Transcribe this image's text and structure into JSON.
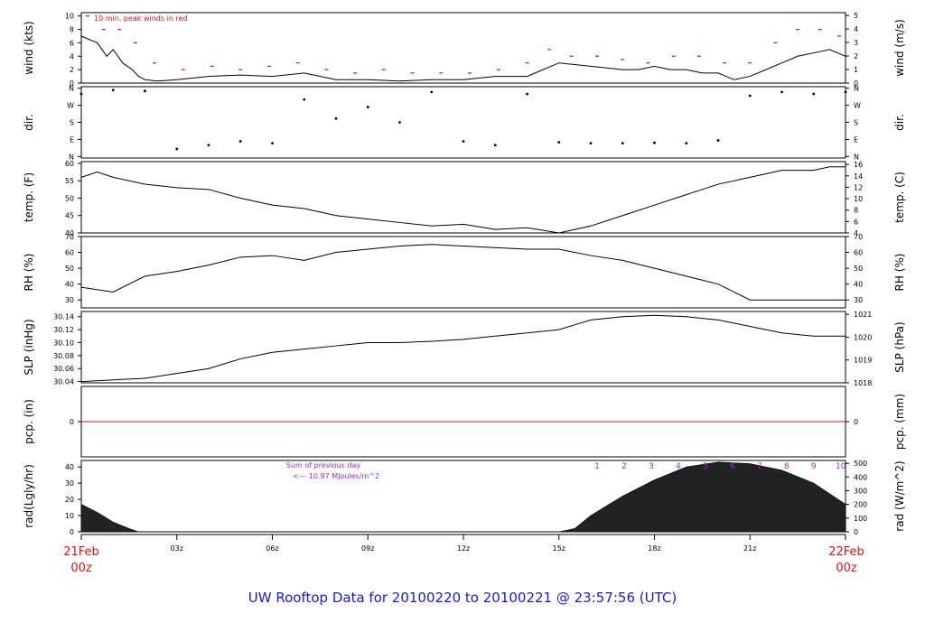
{
  "title": "UW Rooftop Data for 20100220  to  20100221 @ 23:57:56  (UTC)",
  "colors": {
    "title": "#1a1acc",
    "red": "#e01010",
    "purple": "#9a2ad8",
    "ink": "#000000"
  },
  "time_axis": {
    "ticks": [
      0,
      3,
      6,
      9,
      12,
      15,
      18,
      21,
      24
    ],
    "tick_labels": [
      "",
      "03z",
      "06z",
      "09z",
      "12z",
      "15z",
      "18z",
      "21z",
      ""
    ],
    "start_label_top": "21Feb",
    "start_label_bottom": "00z",
    "end_label_top": "22Feb",
    "end_label_bottom": "00z"
  },
  "annotations": {
    "wind_note": "10 min. peak winds in red",
    "rad_sum_line1": "Sum of previous day",
    "rad_sum_line2": "<--- 10.97 MJoules/m^2",
    "rad_hours": [
      "1",
      "2",
      "3",
      "4",
      "5",
      "6",
      "7",
      "8",
      "9",
      "10"
    ]
  },
  "chart_data": [
    {
      "type": "line",
      "panel": "wind",
      "ylabel_left": "wind (kts)",
      "ylabel_right": "wind (m/s)",
      "ylim": [
        0,
        10.5
      ],
      "left_ticks": [
        0,
        2,
        4,
        6,
        8,
        10
      ],
      "right_ticks": [
        0,
        1,
        2,
        3,
        4,
        5
      ],
      "series": [
        {
          "name": "wind",
          "x": [
            0,
            0.5,
            0.8,
            1.0,
            1.3,
            1.6,
            1.8,
            2.0,
            2.4,
            3.0,
            4.0,
            5.0,
            6.0,
            7.0,
            8.0,
            9.0,
            10.0,
            11.0,
            12.0,
            13.0,
            14.0,
            14.5,
            15.0,
            16.0,
            17.0,
            17.5,
            18.0,
            18.5,
            19.0,
            19.5,
            20.0,
            20.5,
            21.0,
            21.5,
            22.0,
            22.5,
            23.0,
            23.5,
            24.0
          ],
          "y": [
            7,
            6,
            4,
            5,
            3,
            2,
            1,
            0.5,
            0.3,
            0.5,
            1,
            1.2,
            1,
            1.5,
            0.5,
            0.5,
            0.3,
            0.5,
            0.5,
            1,
            1,
            2,
            3,
            2.5,
            2,
            2,
            2.5,
            2,
            2,
            1.5,
            1.5,
            0.5,
            1,
            2,
            3,
            4,
            4.5,
            5,
            4
          ]
        },
        {
          "name": "10 min. peak winds",
          "x": [
            0.2,
            0.7,
            1.2,
            1.7,
            2.3,
            3.2,
            4.1,
            5.0,
            5.9,
            6.8,
            7.7,
            8.6,
            9.5,
            10.4,
            11.3,
            12.2,
            13.1,
            14.0,
            14.7,
            15.4,
            16.2,
            17.0,
            17.8,
            18.6,
            19.4,
            20.2,
            21.0,
            21.8,
            22.5,
            23.2,
            23.8
          ],
          "y": [
            10,
            8,
            8,
            6,
            3,
            2,
            2.5,
            2,
            2.5,
            3,
            2,
            1.5,
            2,
            1.5,
            1.5,
            1.5,
            2,
            3,
            5,
            4,
            4,
            3.5,
            3,
            4,
            4,
            3,
            3,
            6,
            8,
            8,
            7
          ]
        }
      ]
    },
    {
      "type": "scatter",
      "panel": "dir",
      "ylabel_left": "dir.",
      "ylabel_right": "dir.",
      "y_ticks": [
        "N",
        "E",
        "S",
        "W",
        "N"
      ],
      "y_values": [
        0,
        90,
        180,
        270,
        360
      ],
      "series": [
        {
          "name": "direction",
          "x": [
            0,
            1,
            2,
            3,
            4,
            5,
            6,
            7,
            8,
            9,
            10,
            11,
            12,
            13,
            14,
            15,
            16,
            17,
            18,
            19,
            20,
            21,
            22,
            23,
            24
          ],
          "y": [
            330,
            350,
            345,
            40,
            60,
            80,
            70,
            300,
            200,
            260,
            180,
            340,
            80,
            60,
            330,
            75,
            70,
            70,
            72,
            70,
            85,
            320,
            340,
            330,
            340
          ]
        }
      ]
    },
    {
      "type": "line",
      "panel": "temp",
      "ylabel_left": "temp. (F)",
      "ylabel_right": "temp. (C)",
      "ylim": [
        40,
        60.5
      ],
      "left_ticks": [
        40,
        45,
        50,
        55,
        60
      ],
      "right_ticks": [
        4,
        6,
        8,
        10,
        12,
        14,
        16
      ],
      "series": [
        {
          "name": "temperature",
          "x": [
            0,
            0.5,
            1,
            2,
            3,
            4,
            5,
            6,
            7,
            8,
            9,
            10,
            11,
            12,
            13,
            14,
            15,
            16,
            17,
            18,
            19,
            20,
            21,
            22,
            23,
            23.5,
            24
          ],
          "y": [
            56,
            57.5,
            56,
            54,
            53,
            52.5,
            50,
            48,
            47,
            45,
            44,
            43,
            42,
            42.5,
            41,
            41.5,
            40,
            42,
            45,
            48,
            51,
            54,
            56,
            58,
            58,
            59,
            59
          ]
        }
      ]
    },
    {
      "type": "line",
      "panel": "rh",
      "ylabel_left": "RH (%)",
      "ylabel_right": "RH (%)",
      "ylim": [
        25,
        70
      ],
      "left_ticks": [
        30,
        40,
        50,
        60,
        70
      ],
      "right_ticks": [
        30,
        40,
        50,
        60,
        70
      ],
      "series": [
        {
          "name": "relative humidity",
          "x": [
            0,
            1,
            2,
            3,
            4,
            5,
            6,
            7,
            8,
            9,
            10,
            11,
            12,
            13,
            14,
            15,
            16,
            17,
            18,
            19,
            20,
            20.5,
            21,
            22,
            23,
            24
          ],
          "y": [
            38,
            35,
            45,
            48,
            52,
            57,
            58,
            55,
            60,
            62,
            64,
            65,
            64,
            63,
            62,
            62,
            58,
            55,
            50,
            45,
            40,
            35,
            30,
            30,
            30,
            30
          ]
        }
      ]
    },
    {
      "type": "line",
      "panel": "slp",
      "ylabel_left": "SLP (inHg)",
      "ylabel_right": "SLP (hPa)",
      "ylim": [
        30.038,
        30.148
      ],
      "left_ticks": [
        30.04,
        30.06,
        30.08,
        30.1,
        30.12,
        30.14
      ],
      "left_tick_labels": [
        "30.04",
        "30.06",
        "30.08",
        "30.10",
        "30.12",
        "30.14"
      ],
      "right_ticks": [
        1018,
        1019,
        1020,
        1021
      ],
      "series": [
        {
          "name": "sea level pressure",
          "x": [
            0,
            2,
            4,
            5,
            6,
            7,
            8,
            9,
            10,
            11,
            12,
            13,
            14,
            15,
            16,
            17,
            18,
            19,
            20,
            21,
            22,
            23,
            24
          ],
          "y": [
            30.04,
            30.045,
            30.06,
            30.075,
            30.085,
            30.09,
            30.095,
            30.1,
            30.1,
            30.102,
            30.105,
            30.11,
            30.115,
            30.12,
            30.135,
            30.14,
            30.142,
            30.14,
            30.135,
            30.125,
            30.115,
            30.11,
            30.11
          ]
        }
      ]
    },
    {
      "type": "line",
      "panel": "pcp",
      "ylabel_left": "pcp. (in)",
      "ylabel_right": "pcp. (mm)",
      "left_ticks": [
        0
      ],
      "right_ticks": [
        0
      ],
      "series": [
        {
          "name": "precipitation",
          "x": [
            0,
            24
          ],
          "y": [
            0,
            0
          ]
        }
      ]
    },
    {
      "type": "area",
      "panel": "rad",
      "ylabel_left": "rad(Lgly/hr)",
      "ylabel_right": "rad (W/m^2)",
      "ylim": [
        0,
        44
      ],
      "left_ticks": [
        0,
        10,
        20,
        30,
        40
      ],
      "right_ticks": [
        0,
        100,
        200,
        300,
        400,
        500
      ],
      "series": [
        {
          "name": "solar radiation",
          "x": [
            0,
            0.5,
            1.0,
            1.5,
            1.8,
            15.0,
            15.5,
            16,
            17,
            18,
            19,
            20,
            21,
            22,
            23,
            24
          ],
          "y": [
            17,
            12,
            6,
            2,
            0,
            0,
            2,
            10,
            22,
            32,
            40,
            43,
            42,
            38,
            30,
            17
          ]
        }
      ]
    }
  ]
}
